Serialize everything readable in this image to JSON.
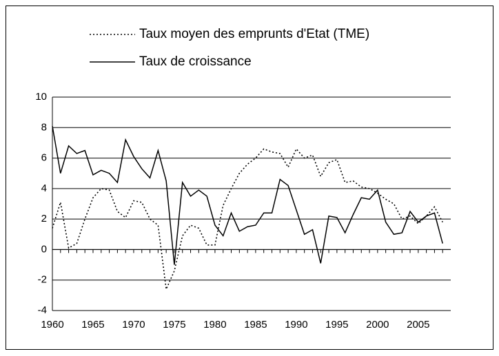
{
  "chart_data": {
    "type": "line",
    "x": [
      1960,
      1961,
      1962,
      1963,
      1964,
      1965,
      1966,
      1967,
      1968,
      1969,
      1970,
      1971,
      1972,
      1973,
      1974,
      1975,
      1976,
      1977,
      1978,
      1979,
      1980,
      1981,
      1982,
      1983,
      1984,
      1985,
      1986,
      1987,
      1988,
      1989,
      1990,
      1991,
      1992,
      1993,
      1994,
      1995,
      1996,
      1997,
      1998,
      1999,
      2000,
      2001,
      2002,
      2003,
      2004,
      2005,
      2006,
      2007,
      2008
    ],
    "series": [
      {
        "name": "Taux moyen des emprunts d'Etat (TME)",
        "color": "#000000",
        "style": "dotted",
        "values": [
          1.4,
          3.1,
          0.1,
          0.4,
          2.0,
          3.4,
          4.0,
          3.9,
          2.5,
          2.1,
          3.2,
          3.1,
          2.0,
          1.6,
          -2.6,
          -1.4,
          0.9,
          1.6,
          1.4,
          0.3,
          0.3,
          2.9,
          4.0,
          5.0,
          5.6,
          6.0,
          6.6,
          6.4,
          6.3,
          5.4,
          6.6,
          6.0,
          6.2,
          4.8,
          5.7,
          5.9,
          4.4,
          4.5,
          4.1,
          4.0,
          3.7,
          3.3,
          3.0,
          2.0,
          2.2,
          1.7,
          2.2,
          2.8,
          1.8
        ]
      },
      {
        "name": "Taux de croissance",
        "color": "#000000",
        "style": "solid",
        "values": [
          8.1,
          5.0,
          6.8,
          6.3,
          6.5,
          4.9,
          5.2,
          5.0,
          4.4,
          7.2,
          6.1,
          5.3,
          4.7,
          6.5,
          4.5,
          -1.0,
          4.4,
          3.5,
          3.9,
          3.5,
          1.6,
          0.9,
          2.4,
          1.2,
          1.5,
          1.6,
          2.4,
          2.4,
          4.6,
          4.2,
          2.6,
          1.0,
          1.3,
          -0.9,
          2.2,
          2.1,
          1.1,
          2.3,
          3.4,
          3.3,
          3.9,
          1.8,
          1.0,
          1.1,
          2.5,
          1.8,
          2.2,
          2.4,
          0.4
        ]
      }
    ],
    "xlim": [
      1960,
      2009
    ],
    "xticks": [
      1960,
      1965,
      1970,
      1975,
      1980,
      1985,
      1990,
      1995,
      2000,
      2005
    ],
    "ylim": [
      -4,
      10
    ],
    "yticks": [
      -4,
      -2,
      0,
      2,
      4,
      6,
      8,
      10
    ],
    "grid": true,
    "legend": "top"
  }
}
